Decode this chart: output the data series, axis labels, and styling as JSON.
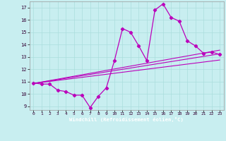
{
  "title": "",
  "xlabel": "Windchill (Refroidissement éolien,°C)",
  "background_color": "#c8eef0",
  "xlabel_bg": "#7700aa",
  "grid_color": "#aadddd",
  "line_color": "#bb00bb",
  "xlim": [
    -0.5,
    23.5
  ],
  "ylim": [
    8.7,
    17.5
  ],
  "xticks": [
    0,
    1,
    2,
    3,
    4,
    5,
    6,
    7,
    8,
    9,
    10,
    11,
    12,
    13,
    14,
    15,
    16,
    17,
    18,
    19,
    20,
    21,
    22,
    23
  ],
  "yticks": [
    9,
    10,
    11,
    12,
    13,
    14,
    15,
    16,
    17
  ],
  "series1_x": [
    0,
    1,
    2,
    3,
    4,
    5,
    6,
    7,
    8,
    9,
    10,
    11,
    12,
    13,
    14,
    15,
    16,
    17,
    18,
    19,
    20,
    21,
    22,
    23
  ],
  "series1_y": [
    10.9,
    10.8,
    10.8,
    10.3,
    10.2,
    9.9,
    9.9,
    8.9,
    9.8,
    10.5,
    12.7,
    15.3,
    15.0,
    13.9,
    12.7,
    16.8,
    17.3,
    16.2,
    15.9,
    14.3,
    13.9,
    13.3,
    13.4,
    13.2
  ],
  "trend1_x": [
    0,
    23
  ],
  "trend1_y": [
    10.85,
    13.55
  ],
  "trend2_x": [
    0,
    23
  ],
  "trend2_y": [
    10.85,
    13.25
  ],
  "trend3_x": [
    0,
    23
  ],
  "trend3_y": [
    10.85,
    12.75
  ]
}
